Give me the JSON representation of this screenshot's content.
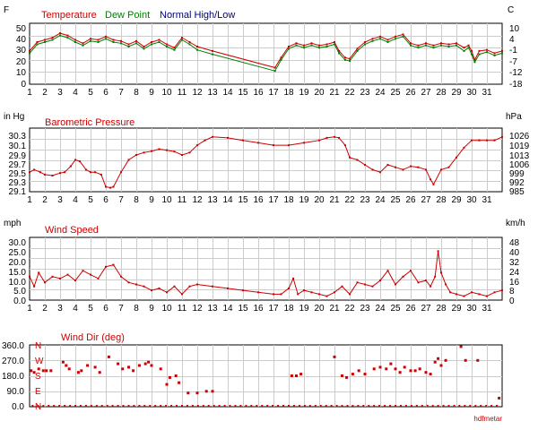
{
  "days": [
    "1",
    "2",
    "3",
    "4",
    "5",
    "6",
    "7",
    "8",
    "9",
    "10",
    "11",
    "12",
    "13",
    "14",
    "15",
    "16",
    "17",
    "18",
    "19",
    "20",
    "21",
    "22",
    "23",
    "24",
    "25",
    "26",
    "27",
    "28",
    "29",
    "30",
    "31"
  ],
  "credit": "hdfmetar",
  "colors": {
    "temperature": "#cc0000",
    "dew_point": "#008000",
    "normal": "#000080",
    "pressure": "#cc0000",
    "wind_speed": "#cc0000",
    "wind_dir": "#cc0000",
    "grid": "#cccccc"
  },
  "chart_data": [
    {
      "type": "line",
      "legend": [
        "Temperature",
        "Dew Point",
        "Normal High/Low"
      ],
      "left_unit": "F",
      "right_unit": "C",
      "left_ticks": [
        "50",
        "40",
        "30",
        "20",
        "10",
        "0"
      ],
      "right_ticks": [
        "10",
        "4",
        "-1",
        "-7",
        "-12",
        "-18"
      ],
      "ylim": [
        0,
        55
      ],
      "xlim": [
        1,
        32
      ],
      "series": [
        {
          "name": "Temperature",
          "x": [
            1,
            1.5,
            2,
            2.5,
            3,
            3.5,
            4,
            4.5,
            5,
            5.5,
            6,
            6.5,
            7,
            7.5,
            8,
            8.5,
            9,
            9.5,
            10,
            10.5,
            11,
            11.5,
            12,
            13,
            17.1,
            17.5,
            18,
            18.5,
            19,
            19.5,
            20,
            20.5,
            21,
            21.3,
            21.7,
            22,
            22.5,
            23,
            23.5,
            24,
            24.5,
            25,
            25.5,
            26,
            26.5,
            27,
            27.5,
            28,
            28.5,
            29,
            29.5,
            29.8,
            30,
            30.2,
            30.5,
            31,
            31.5,
            32
          ],
          "y": [
            30,
            38,
            40,
            42,
            46,
            44,
            40,
            37,
            41,
            40,
            43,
            40,
            39,
            36,
            39,
            34,
            38,
            40,
            36,
            33,
            42,
            38,
            34,
            30,
            15,
            24,
            34,
            37,
            35,
            37,
            35,
            36,
            38,
            30,
            24,
            23,
            32,
            38,
            41,
            43,
            40,
            43,
            45,
            37,
            35,
            37,
            35,
            37,
            36,
            37,
            33,
            35,
            30,
            22,
            30,
            31,
            28,
            30
          ]
        },
        {
          "name": "Dew Point",
          "x": [
            1,
            1.5,
            2,
            2.5,
            3,
            3.5,
            4,
            4.5,
            5,
            5.5,
            6,
            6.5,
            7,
            7.5,
            8,
            8.5,
            9,
            9.5,
            10,
            10.5,
            11,
            11.5,
            12,
            13,
            17.1,
            17.5,
            18,
            18.5,
            19,
            19.5,
            20,
            20.5,
            21,
            21.3,
            21.7,
            22,
            22.5,
            23,
            23.5,
            24,
            24.5,
            25,
            25.5,
            26,
            26.5,
            27,
            27.5,
            28,
            28.5,
            29,
            29.5,
            29.8,
            30,
            30.2,
            30.5,
            31,
            31.5,
            32
          ],
          "y": [
            28,
            36,
            38,
            40,
            44,
            42,
            38,
            35,
            39,
            38,
            41,
            38,
            37,
            34,
            37,
            32,
            36,
            38,
            34,
            31,
            40,
            36,
            31,
            27,
            12,
            22,
            32,
            35,
            33,
            35,
            33,
            34,
            36,
            28,
            22,
            21,
            30,
            36,
            39,
            41,
            38,
            41,
            43,
            35,
            33,
            35,
            33,
            35,
            34,
            35,
            30,
            33,
            27,
            20,
            27,
            29,
            26,
            28
          ]
        },
        {
          "name": "Normal High/Low",
          "x": [],
          "y": []
        }
      ]
    },
    {
      "type": "line",
      "title": "Barometric Pressure",
      "left_unit": "in Hg",
      "right_unit": "hPa",
      "left_ticks": [
        "30.3",
        "30.1",
        "29.9",
        "29.7",
        "29.5",
        "29.3",
        "29.1"
      ],
      "right_ticks": [
        "1026",
        "1019",
        "1013",
        "1006",
        "999",
        "992",
        "985"
      ],
      "ylim": [
        29.1,
        30.4
      ],
      "xlim": [
        1,
        32
      ],
      "series": [
        {
          "name": "Barometric Pressure",
          "x": [
            1,
            1.3,
            1.7,
            2,
            2.5,
            3,
            3.3,
            3.7,
            4,
            4.3,
            4.7,
            5,
            5.3,
            5.7,
            6,
            6.3,
            6.5,
            7,
            7.5,
            8,
            8.5,
            9,
            9.5,
            10,
            10.5,
            11,
            11.5,
            12,
            12.5,
            13,
            14,
            15,
            16,
            17,
            18,
            19,
            20,
            20.5,
            21,
            21.3,
            21.7,
            22,
            22.5,
            23,
            23.5,
            24,
            24.5,
            25,
            25.5,
            26,
            26.5,
            27,
            27.3,
            27.5,
            28,
            28.5,
            29,
            29.5,
            30,
            30.5,
            31,
            31.5,
            32
          ],
          "y": [
            29.5,
            29.55,
            29.5,
            29.45,
            29.43,
            29.48,
            29.5,
            29.62,
            29.75,
            29.72,
            29.55,
            29.5,
            29.5,
            29.45,
            29.2,
            29.18,
            29.2,
            29.5,
            29.75,
            29.85,
            29.9,
            29.93,
            29.97,
            29.95,
            29.92,
            29.85,
            29.9,
            30.05,
            30.15,
            30.22,
            30.2,
            30.15,
            30.1,
            30.05,
            30.05,
            30.1,
            30.15,
            30.2,
            30.22,
            30.2,
            30.05,
            29.8,
            29.75,
            29.65,
            29.55,
            29.5,
            29.65,
            29.6,
            29.55,
            29.62,
            29.6,
            29.55,
            29.35,
            29.25,
            29.55,
            29.6,
            29.8,
            30.0,
            30.15,
            30.15,
            30.15,
            30.15,
            30.22
          ]
        }
      ]
    },
    {
      "type": "line",
      "title": "Wind Speed",
      "left_unit": "mph",
      "right_unit": "km/h",
      "left_ticks": [
        "30.0",
        "25.0",
        "20.0",
        "15.0",
        "10.0",
        "5.0",
        "0.0"
      ],
      "right_ticks": [
        "48",
        "40",
        "32",
        "24",
        "16",
        "8",
        "0"
      ],
      "ylim": [
        0,
        32
      ],
      "xlim": [
        1,
        32
      ],
      "series": [
        {
          "name": "Wind Speed",
          "x": [
            1,
            1.3,
            1.6,
            2,
            2.5,
            3,
            3.5,
            4,
            4.5,
            5,
            5.5,
            6,
            6.5,
            7,
            7.5,
            8,
            8.5,
            9,
            9.5,
            10,
            10.5,
            11,
            11.5,
            12,
            13,
            14,
            15,
            16,
            17,
            17.5,
            18,
            18.3,
            18.6,
            19,
            19.5,
            20,
            20.5,
            21,
            21.5,
            22,
            22.5,
            23,
            23.5,
            24,
            24.5,
            25,
            25.5,
            26,
            26.5,
            27,
            27.3,
            27.6,
            27.8,
            28,
            28.3,
            28.6,
            29,
            29.5,
            30,
            30.5,
            31,
            31.5,
            32
          ],
          "y": [
            12,
            7,
            14,
            9,
            12,
            11,
            13,
            10,
            15,
            13,
            11,
            17,
            18,
            12,
            9,
            8,
            7,
            5,
            6,
            4,
            7,
            3,
            7,
            8,
            7,
            6,
            5,
            4,
            3,
            3,
            6,
            11,
            3,
            5,
            4,
            3,
            2,
            4,
            7,
            3,
            9,
            8,
            7,
            10,
            15,
            8,
            12,
            15,
            9,
            10,
            7,
            12,
            25,
            14,
            8,
            4,
            3,
            2,
            4,
            3,
            2,
            4,
            5
          ]
        }
      ]
    },
    {
      "type": "scatter",
      "title": "Wind Dir (deg)",
      "left_ticks": [
        "360.0",
        "270.0",
        "180.0",
        "90.0",
        "0.0"
      ],
      "compass": [
        "N",
        "W",
        "S",
        "E",
        "N"
      ],
      "ylim": [
        0,
        360
      ],
      "xlim": [
        1,
        32
      ],
      "series": [
        {
          "name": "Wind Dir",
          "x": [
            1.1,
            1.3,
            1.6,
            1.9,
            2.1,
            2.4,
            3.2,
            3.4,
            3.6,
            4.2,
            4.4,
            4.8,
            5.3,
            5.6,
            6.2,
            6.8,
            7.1,
            7.5,
            7.8,
            8.2,
            8.6,
            8.8,
            9.0,
            9.6,
            10.0,
            10.2,
            10.6,
            10.8,
            11.4,
            12.0,
            12.6,
            13.0,
            18.2,
            18.5,
            18.8,
            21.0,
            21.5,
            21.8,
            22.2,
            22.6,
            23.0,
            23.6,
            24.0,
            24.4,
            24.7,
            25.0,
            25.3,
            25.6,
            26.0,
            26.3,
            26.6,
            27.0,
            27.3,
            27.6,
            27.8,
            28.0,
            28.3,
            29.3,
            29.6,
            30.4,
            31.8
          ],
          "y": [
            210,
            200,
            220,
            210,
            210,
            210,
            260,
            240,
            220,
            200,
            210,
            240,
            230,
            200,
            290,
            250,
            220,
            230,
            210,
            240,
            250,
            260,
            240,
            220,
            130,
            170,
            180,
            140,
            80,
            80,
            90,
            90,
            180,
            180,
            190,
            290,
            180,
            170,
            190,
            210,
            190,
            220,
            230,
            220,
            250,
            220,
            200,
            230,
            210,
            210,
            220,
            200,
            190,
            260,
            280,
            240,
            270,
            350,
            270,
            270,
            50
          ]
        }
      ]
    }
  ]
}
